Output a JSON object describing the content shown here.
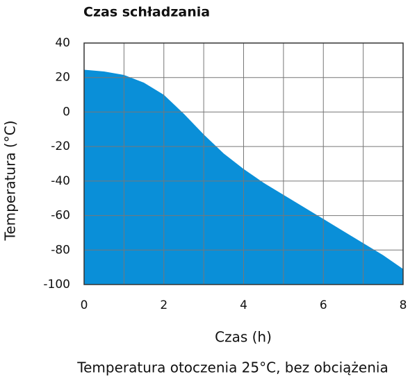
{
  "chart_data": {
    "type": "area",
    "title": "Czas schładzania",
    "caption": "Temperatura otoczenia 25°C, bez obciążenia",
    "x_label": "Czas (h)",
    "y_label": "Temperatura (°C)",
    "x": [
      0,
      0.5,
      1,
      1.5,
      2,
      2.5,
      3,
      3.5,
      4,
      4.5,
      5,
      5.5,
      6,
      6.5,
      7,
      7.5,
      8
    ],
    "values": [
      24.5,
      23.5,
      21.5,
      17,
      10,
      -1,
      -13,
      -24,
      -33,
      -41,
      -48,
      -55,
      -62,
      -69,
      -76,
      -83,
      -91
    ],
    "color": "#0a8fd8",
    "xlim": [
      0,
      8
    ],
    "xticks": [
      0,
      2,
      4,
      6,
      8
    ],
    "xminorticks": [
      1,
      3,
      5,
      7
    ],
    "ylim": [
      -100,
      40
    ],
    "yticks": [
      -100,
      -80,
      -60,
      -40,
      -20,
      0,
      20,
      40
    ],
    "grid": true
  }
}
